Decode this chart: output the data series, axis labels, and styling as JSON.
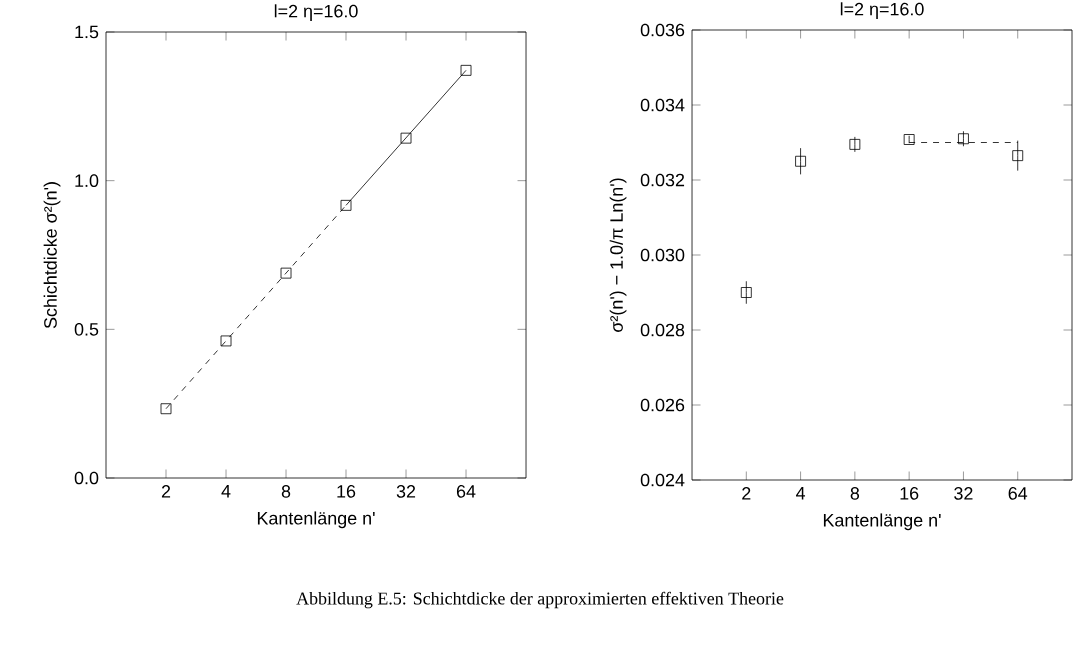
{
  "chart_data": [
    {
      "type": "scatter",
      "title": "l=2     η=16.0",
      "xlabel": "Kantenlänge n'",
      "ylabel": "Schichtdicke σ²(n')",
      "log": "x",
      "x": [
        2,
        4,
        8,
        16,
        32,
        64
      ],
      "xlim": [
        1,
        128
      ],
      "xticks": [
        2,
        4,
        8,
        16,
        32,
        64
      ],
      "ylim": [
        0,
        1.5
      ],
      "yticks": [
        {
          "value": 0,
          "label": "0.0"
        },
        0.5,
        {
          "value": 1,
          "label": "1.0"
        },
        1.5
      ],
      "series": [
        {
          "type": "scatter",
          "color": "#000000",
          "marker": "square",
          "values": [
            0.233,
            0.461,
            0.689,
            0.917,
            1.143,
            1.371
          ]
        },
        {
          "type": "line",
          "color": "#000000",
          "marker": "none",
          "line_style": "dashed",
          "x": [
            2,
            16
          ],
          "values": [
            0.233,
            0.917
          ]
        },
        {
          "type": "line",
          "color": "#000000",
          "marker": "none",
          "line_style": "solid",
          "x": [
            16,
            64
          ],
          "values": [
            0.917,
            1.371
          ]
        }
      ],
      "annotations": [
        "Abbildung E.5: Schichtdicke der approximierten effektiven Theorie"
      ]
    },
    {
      "type": "scatter",
      "title": "l=2     η=16.0",
      "xlabel": "Kantenlänge n'",
      "ylabel": "σ²(n') − 1.0/π Ln(n')",
      "log": "x",
      "x": [
        2,
        4,
        8,
        16,
        32,
        64
      ],
      "xlim": [
        1,
        128
      ],
      "xticks": [
        2,
        4,
        8,
        16,
        32,
        64
      ],
      "ylim": [
        0.024,
        0.036
      ],
      "yticks": [
        0.024,
        0.026,
        0.028,
        {
          "value": 0.03,
          "label": "0.030"
        },
        0.032,
        0.034,
        0.036
      ],
      "series": [
        {
          "type": "scatter",
          "color": "#000000",
          "marker": "square",
          "values": [
            0.029,
            0.0325,
            0.03295,
            0.03308,
            0.0331,
            0.03265
          ],
          "errors": [
            0.0003,
            0.00035,
            0.0002,
            0.0001,
            0.0002,
            0.0004
          ]
        },
        {
          "type": "line",
          "color": "#000000",
          "marker": "none",
          "line_style": "dashed",
          "x": [
            16,
            64
          ],
          "values": [
            0.033,
            0.033
          ]
        }
      ]
    }
  ]
}
